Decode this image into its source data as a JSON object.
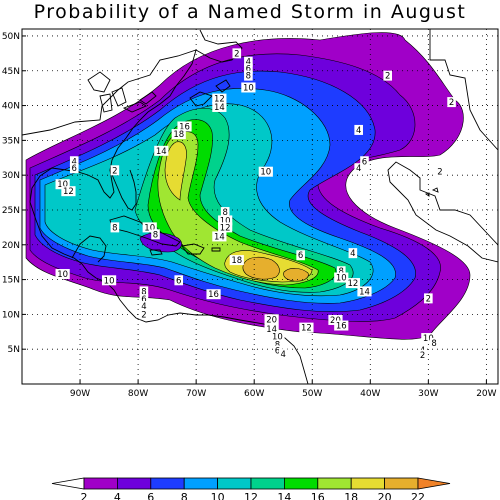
{
  "title": "Probability of a Named Storm in August",
  "map": {
    "lon_range": [
      -100,
      -18
    ],
    "lat_range": [
      0,
      51
    ],
    "lon_ticks": [
      {
        "v": -90,
        "label": "90W"
      },
      {
        "v": -80,
        "label": "80W"
      },
      {
        "v": -70,
        "label": "70W"
      },
      {
        "v": -60,
        "label": "60W"
      },
      {
        "v": -50,
        "label": "50W"
      },
      {
        "v": -40,
        "label": "40W"
      },
      {
        "v": -30,
        "label": "30W"
      },
      {
        "v": -20,
        "label": "20W"
      }
    ],
    "lat_ticks": [
      {
        "v": 5,
        "label": "5N"
      },
      {
        "v": 10,
        "label": "10N"
      },
      {
        "v": 15,
        "label": "15N"
      },
      {
        "v": 20,
        "label": "20N"
      },
      {
        "v": 25,
        "label": "25N"
      },
      {
        "v": 30,
        "label": "30N"
      },
      {
        "v": 35,
        "label": "35N"
      },
      {
        "v": 40,
        "label": "40N"
      },
      {
        "v": 45,
        "label": "45N"
      },
      {
        "v": 50,
        "label": "50N"
      }
    ],
    "grid": "dotted"
  },
  "contour_labels": [
    {
      "lon": -63,
      "lat": 47.5,
      "text": "2"
    },
    {
      "lon": -61,
      "lat": 46.3,
      "text": "4"
    },
    {
      "lon": -61,
      "lat": 45.3,
      "text": "6"
    },
    {
      "lon": -61,
      "lat": 44.3,
      "text": "8"
    },
    {
      "lon": -61,
      "lat": 42.6,
      "text": "10"
    },
    {
      "lon": -37,
      "lat": 44.3,
      "text": "2"
    },
    {
      "lon": -26,
      "lat": 40.5,
      "text": "2"
    },
    {
      "lon": -66,
      "lat": 41.0,
      "text": "12"
    },
    {
      "lon": -66,
      "lat": 39.8,
      "text": "14"
    },
    {
      "lon": -72,
      "lat": 37.0,
      "text": "16"
    },
    {
      "lon": -73,
      "lat": 35.9,
      "text": "18"
    },
    {
      "lon": -76,
      "lat": 33.5,
      "text": "14"
    },
    {
      "lon": -42,
      "lat": 36.5,
      "text": "4"
    },
    {
      "lon": -41,
      "lat": 32.0,
      "text": "6"
    },
    {
      "lon": -42,
      "lat": 31.0,
      "text": "4"
    },
    {
      "lon": -28,
      "lat": 30.5,
      "text": "2"
    },
    {
      "lon": -58,
      "lat": 30.5,
      "text": "10"
    },
    {
      "lon": -91,
      "lat": 32.0,
      "text": "4"
    },
    {
      "lon": -91,
      "lat": 31.0,
      "text": "6"
    },
    {
      "lon": -84,
      "lat": 30.7,
      "text": "2"
    },
    {
      "lon": -93,
      "lat": 28.7,
      "text": "10"
    },
    {
      "lon": -92,
      "lat": 27.7,
      "text": "12"
    },
    {
      "lon": -84,
      "lat": 22.5,
      "text": "8"
    },
    {
      "lon": -78,
      "lat": 22.5,
      "text": "10"
    },
    {
      "lon": -77,
      "lat": 21.5,
      "text": "8"
    },
    {
      "lon": -65,
      "lat": 24.7,
      "text": "8"
    },
    {
      "lon": -65,
      "lat": 23.5,
      "text": "10"
    },
    {
      "lon": -65,
      "lat": 22.5,
      "text": "12"
    },
    {
      "lon": -66,
      "lat": 21.2,
      "text": "14"
    },
    {
      "lon": -63,
      "lat": 17.8,
      "text": "18"
    },
    {
      "lon": -52,
      "lat": 18.5,
      "text": "6"
    },
    {
      "lon": -43,
      "lat": 18.8,
      "text": "4"
    },
    {
      "lon": -45,
      "lat": 16.2,
      "text": "8"
    },
    {
      "lon": -45,
      "lat": 15.3,
      "text": "10"
    },
    {
      "lon": -43,
      "lat": 14.5,
      "text": "12"
    },
    {
      "lon": -41,
      "lat": 13.3,
      "text": "14"
    },
    {
      "lon": -30,
      "lat": 12.3,
      "text": "2"
    },
    {
      "lon": -93,
      "lat": 15.8,
      "text": "10"
    },
    {
      "lon": -85,
      "lat": 14.9,
      "text": "10"
    },
    {
      "lon": -79,
      "lat": 13.3,
      "text": "8"
    },
    {
      "lon": -79,
      "lat": 12.2,
      "text": "6"
    },
    {
      "lon": -79,
      "lat": 11.2,
      "text": "4"
    },
    {
      "lon": -79,
      "lat": 10.0,
      "text": "2"
    },
    {
      "lon": -73,
      "lat": 14.9,
      "text": "6"
    },
    {
      "lon": -67,
      "lat": 12.9,
      "text": "16"
    },
    {
      "lon": -46,
      "lat": 9.2,
      "text": "20"
    },
    {
      "lon": -57,
      "lat": 9.3,
      "text": "20"
    },
    {
      "lon": -57,
      "lat": 7.9,
      "text": "14"
    },
    {
      "lon": -51,
      "lat": 8.1,
      "text": "12"
    },
    {
      "lon": -56,
      "lat": 6.8,
      "text": "10"
    },
    {
      "lon": -56,
      "lat": 5.7,
      "text": "8"
    },
    {
      "lon": -56,
      "lat": 4.8,
      "text": "6"
    },
    {
      "lon": -55,
      "lat": 4.3,
      "text": "4"
    },
    {
      "lon": -45,
      "lat": 8.4,
      "text": "16"
    },
    {
      "lon": -30,
      "lat": 6.6,
      "text": "10"
    },
    {
      "lon": -29,
      "lat": 5.9,
      "text": "8"
    },
    {
      "lon": -31,
      "lat": 4.9,
      "text": "4"
    },
    {
      "lon": -31,
      "lat": 4.2,
      "text": "2"
    }
  ],
  "colorbar": {
    "levels": [
      "2",
      "4",
      "6",
      "8",
      "10",
      "12",
      "14",
      "16",
      "18",
      "20",
      "22"
    ],
    "colors": [
      "#ffffff",
      "#a000c8",
      "#6e00dc",
      "#1e3cff",
      "#00a0ff",
      "#00c8c8",
      "#00d28c",
      "#00dc00",
      "#a0e632",
      "#e6dc32",
      "#e6af2d",
      "#f08228"
    ]
  }
}
